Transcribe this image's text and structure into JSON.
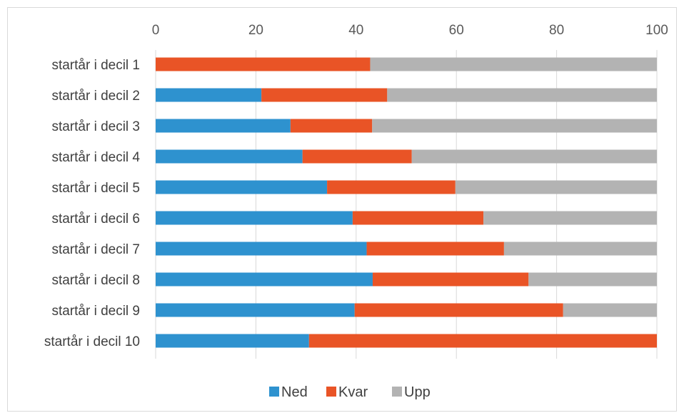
{
  "chart_data": {
    "type": "bar",
    "orientation": "horizontal",
    "stacked": true,
    "title": "",
    "xlabel": "",
    "ylabel": "",
    "xlim": [
      0,
      100
    ],
    "x_ticks": [
      "0",
      "20",
      "40",
      "60",
      "80",
      "100"
    ],
    "x_axis_position": "top",
    "grid": "vertical-major",
    "legend_position": "bottom",
    "categories": [
      "startår i decil 1",
      "startår i decil 2",
      "startår i decil 3",
      "startår i decil 4",
      "startår i decil 5",
      "startår i decil 6",
      "startår i decil 7",
      "startår i decil 8",
      "startår i decil 9",
      "startår i decil 10"
    ],
    "series": [
      {
        "name": "Ned",
        "color": "#2e92cf",
        "values": [
          0,
          21.1,
          26.9,
          29.3,
          34.2,
          39.3,
          42.1,
          43.3,
          39.7,
          30.6
        ]
      },
      {
        "name": "Kvar",
        "color": "#e95426",
        "values": [
          42.8,
          25.1,
          16.3,
          21.8,
          25.6,
          26.1,
          27.4,
          31.1,
          41.6,
          69.4
        ]
      },
      {
        "name": "Upp",
        "color": "#b3b3b3",
        "values": [
          57.2,
          53.8,
          56.8,
          48.9,
          40.2,
          34.6,
          30.5,
          25.6,
          18.7,
          0
        ]
      }
    ]
  }
}
